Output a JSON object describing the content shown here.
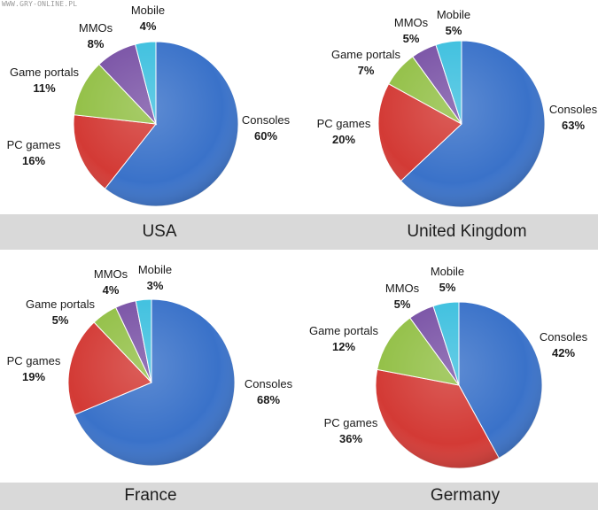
{
  "watermark": "WWW.GRY-ONLINE.PL",
  "chart_data": [
    {
      "type": "pie",
      "title": "USA",
      "slices": [
        {
          "label": "Consoles",
          "value": 60,
          "display": "60%",
          "color": "#3a72c9"
        },
        {
          "label": "PC games",
          "value": 16,
          "display": "16%",
          "color": "#d33a35"
        },
        {
          "label": "Game portals",
          "value": 11,
          "display": "11%",
          "color": "#93c047"
        },
        {
          "label": "MMOs",
          "value": 8,
          "display": "8%",
          "color": "#7a53a6"
        },
        {
          "label": "Mobile",
          "value": 4,
          "display": "4%",
          "color": "#3ec0df"
        }
      ]
    },
    {
      "type": "pie",
      "title": "United Kingdom",
      "slices": [
        {
          "label": "Consoles",
          "value": 63,
          "display": "63%",
          "color": "#3a72c9"
        },
        {
          "label": "PC games",
          "value": 20,
          "display": "20%",
          "color": "#d33a35"
        },
        {
          "label": "Game portals",
          "value": 7,
          "display": "7%",
          "color": "#93c047"
        },
        {
          "label": "MMOs",
          "value": 5,
          "display": "5%",
          "color": "#7a53a6"
        },
        {
          "label": "Mobile",
          "value": 5,
          "display": "5%",
          "color": "#3ec0df"
        }
      ]
    },
    {
      "type": "pie",
      "title": "France",
      "slices": [
        {
          "label": "Consoles",
          "value": 68,
          "display": "68%",
          "color": "#3a72c9"
        },
        {
          "label": "PC games",
          "value": 19,
          "display": "19%",
          "color": "#d33a35"
        },
        {
          "label": "Game portals",
          "value": 5,
          "display": "5%",
          "color": "#93c047"
        },
        {
          "label": "MMOs",
          "value": 4,
          "display": "4%",
          "color": "#7a53a6"
        },
        {
          "label": "Mobile",
          "value": 3,
          "display": "3%",
          "color": "#3ec0df"
        }
      ]
    },
    {
      "type": "pie",
      "title": "Germany",
      "slices": [
        {
          "label": "Consoles",
          "value": 42,
          "display": "42%",
          "color": "#3a72c9"
        },
        {
          "label": "PC games",
          "value": 36,
          "display": "36%",
          "color": "#d33a35"
        },
        {
          "label": "Game portals",
          "value": 12,
          "display": "12%",
          "color": "#93c047"
        },
        {
          "label": "MMOs",
          "value": 5,
          "display": "5%",
          "color": "#7a53a6"
        },
        {
          "label": "Mobile",
          "value": 5,
          "display": "5%",
          "color": "#3ec0df"
        }
      ]
    }
  ]
}
